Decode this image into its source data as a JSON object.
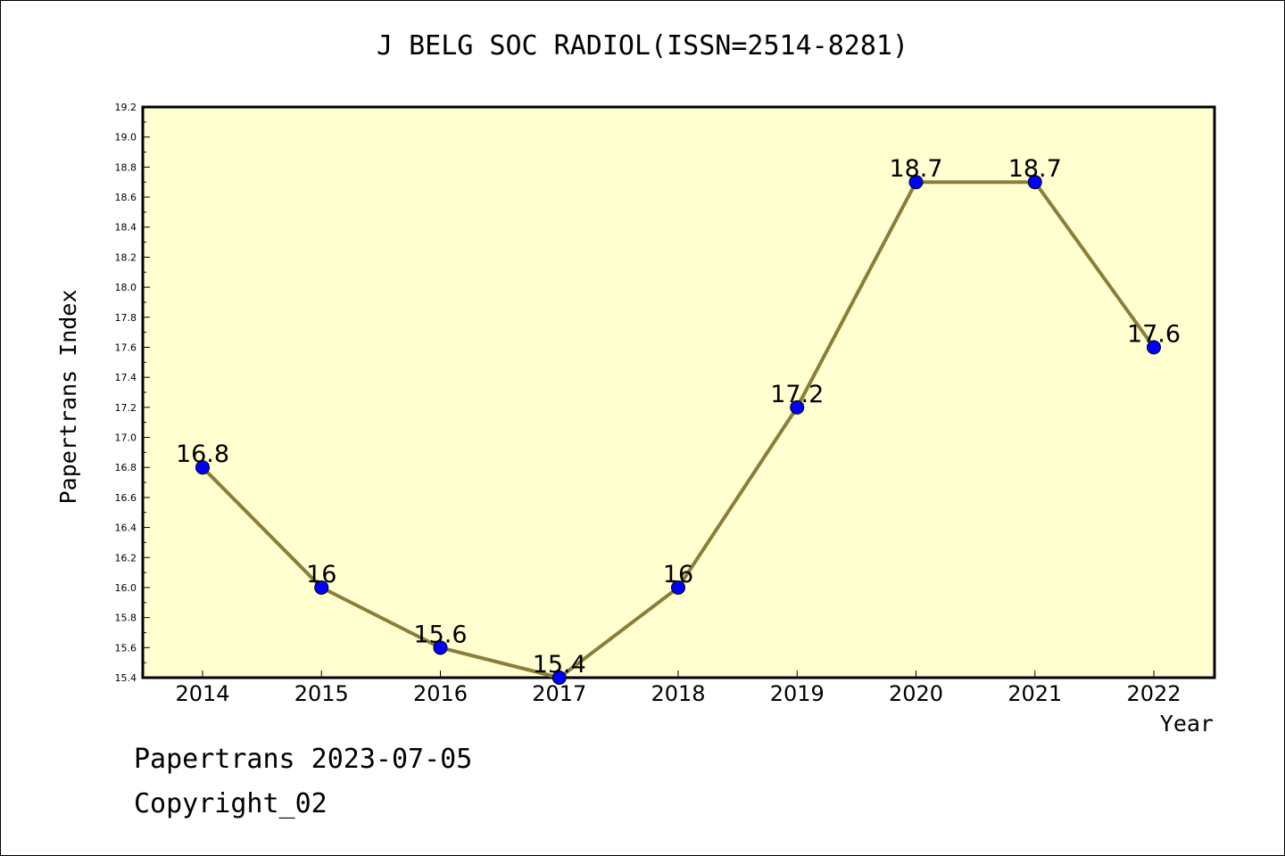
{
  "chart_data": {
    "type": "line",
    "title": "J BELG SOC RADIOL(ISSN=2514-8281)",
    "xlabel": "Year",
    "ylabel": "Papertrans Index",
    "categories": [
      "2014",
      "2015",
      "2016",
      "2017",
      "2018",
      "2019",
      "2020",
      "2021",
      "2022"
    ],
    "values": [
      16.8,
      16.0,
      15.6,
      15.4,
      16.0,
      17.2,
      18.7,
      18.7,
      17.6
    ],
    "data_labels": [
      "16.8",
      "16",
      "15.6",
      "15.4",
      "16",
      "17.2",
      "18.7",
      "18.7",
      "17.6"
    ],
    "ylim": [
      15.4,
      19.2
    ],
    "yticks": [
      "15.4",
      "15.6",
      "15.8",
      "16.0",
      "16.2",
      "16.4",
      "16.6",
      "16.8",
      "17.0",
      "17.2",
      "17.4",
      "17.6",
      "17.8",
      "18.0",
      "18.2",
      "18.4",
      "18.6",
      "18.8",
      "19.0",
      "19.2"
    ],
    "grid": false,
    "colors": {
      "plot_bg": "#ffffd0",
      "line": "#8b7d3a",
      "marker": "#0000ff"
    }
  },
  "footer": {
    "line1": "Papertrans 2023-07-05",
    "line2": "Copyright_02"
  }
}
